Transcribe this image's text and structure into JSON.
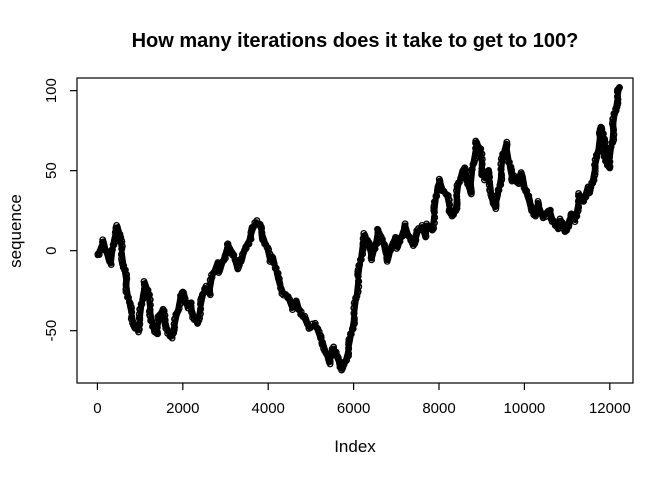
{
  "title": "How many iterations does it take to get to 100?",
  "chart_data": {
    "type": "scatter",
    "title": "How many iterations does it take to get to 100?",
    "xlabel": "Index",
    "ylabel": "sequence",
    "x_ticks": [
      0,
      2000,
      4000,
      6000,
      8000,
      10000,
      12000
    ],
    "y_ticks": [
      -50,
      0,
      50,
      100
    ],
    "xlim": [
      -478,
      12543
    ],
    "ylim": [
      -82.7,
      107.9
    ],
    "grid": false,
    "legend": "none",
    "point_style": "open-circle",
    "point_color": "#000000",
    "background": "#ffffff",
    "series_name": "sequence",
    "final_value": 102,
    "final_index": 12240,
    "keypoints": [
      [
        0,
        -3
      ],
      [
        80,
        2
      ],
      [
        150,
        6
      ],
      [
        200,
        0
      ],
      [
        260,
        -6
      ],
      [
        320,
        -8
      ],
      [
        380,
        6
      ],
      [
        430,
        12
      ],
      [
        480,
        15
      ],
      [
        520,
        10
      ],
      [
        560,
        2
      ],
      [
        620,
        -10
      ],
      [
        660,
        -17
      ],
      [
        700,
        -25
      ],
      [
        760,
        -35
      ],
      [
        820,
        -42
      ],
      [
        880,
        -48
      ],
      [
        940,
        -50
      ],
      [
        1000,
        -42
      ],
      [
        1060,
        -28
      ],
      [
        1120,
        -20
      ],
      [
        1180,
        -25
      ],
      [
        1240,
        -38
      ],
      [
        1320,
        -50
      ],
      [
        1380,
        -52
      ],
      [
        1450,
        -42
      ],
      [
        1520,
        -37
      ],
      [
        1590,
        -44
      ],
      [
        1660,
        -51
      ],
      [
        1720,
        -54
      ],
      [
        1800,
        -48
      ],
      [
        1870,
        -39
      ],
      [
        1940,
        -29
      ],
      [
        2030,
        -26
      ],
      [
        2100,
        -35
      ],
      [
        2170,
        -33
      ],
      [
        2260,
        -41
      ],
      [
        2340,
        -45
      ],
      [
        2450,
        -31
      ],
      [
        2520,
        -23
      ],
      [
        2620,
        -27
      ],
      [
        2690,
        -16
      ],
      [
        2800,
        -8
      ],
      [
        2870,
        -13
      ],
      [
        2970,
        -4
      ],
      [
        3060,
        4
      ],
      [
        3180,
        -2
      ],
      [
        3270,
        -11
      ],
      [
        3390,
        -6
      ],
      [
        3460,
        2
      ],
      [
        3580,
        8
      ],
      [
        3650,
        14
      ],
      [
        3720,
        18
      ],
      [
        3810,
        15
      ],
      [
        3880,
        9
      ],
      [
        3970,
        2
      ],
      [
        4040,
        -6
      ],
      [
        4120,
        -4
      ],
      [
        4230,
        -18
      ],
      [
        4350,
        -26
      ],
      [
        4460,
        -29
      ],
      [
        4560,
        -36
      ],
      [
        4680,
        -32
      ],
      [
        4750,
        -39
      ],
      [
        4860,
        -43
      ],
      [
        4980,
        -48
      ],
      [
        5100,
        -46
      ],
      [
        5210,
        -54
      ],
      [
        5290,
        -58
      ],
      [
        5360,
        -64
      ],
      [
        5420,
        -70
      ],
      [
        5470,
        -66
      ],
      [
        5540,
        -61
      ],
      [
        5610,
        -67
      ],
      [
        5680,
        -71
      ],
      [
        5750,
        -74
      ],
      [
        5850,
        -65
      ],
      [
        5920,
        -56
      ],
      [
        5990,
        -45
      ],
      [
        6060,
        -30
      ],
      [
        6120,
        -15
      ],
      [
        6200,
        2
      ],
      [
        6270,
        10
      ],
      [
        6340,
        5
      ],
      [
        6430,
        -5
      ],
      [
        6500,
        2
      ],
      [
        6570,
        13
      ],
      [
        6670,
        8
      ],
      [
        6740,
        -1
      ],
      [
        6810,
        -6
      ],
      [
        6900,
        4
      ],
      [
        6970,
        8
      ],
      [
        7040,
        2
      ],
      [
        7140,
        11
      ],
      [
        7210,
        16
      ],
      [
        7280,
        10
      ],
      [
        7370,
        4
      ],
      [
        7440,
        6
      ],
      [
        7510,
        12
      ],
      [
        7600,
        15
      ],
      [
        7670,
        9
      ],
      [
        7740,
        16
      ],
      [
        7840,
        13
      ],
      [
        7900,
        25
      ],
      [
        7960,
        40
      ],
      [
        8020,
        44
      ],
      [
        8090,
        38
      ],
      [
        8190,
        34
      ],
      [
        8260,
        25
      ],
      [
        8330,
        22
      ],
      [
        8390,
        27
      ],
      [
        8450,
        40
      ],
      [
        8540,
        50
      ],
      [
        8610,
        51
      ],
      [
        8680,
        42
      ],
      [
        8730,
        36
      ],
      [
        8800,
        55
      ],
      [
        8890,
        68
      ],
      [
        8960,
        63
      ],
      [
        9030,
        48
      ],
      [
        9080,
        45
      ],
      [
        9130,
        50
      ],
      [
        9200,
        42
      ],
      [
        9250,
        30
      ],
      [
        9310,
        27
      ],
      [
        9380,
        34
      ],
      [
        9440,
        45
      ],
      [
        9500,
        60
      ],
      [
        9570,
        67
      ],
      [
        9620,
        59
      ],
      [
        9670,
        50
      ],
      [
        9720,
        44
      ],
      [
        9790,
        46
      ],
      [
        9850,
        42
      ],
      [
        9900,
        48
      ],
      [
        9970,
        46
      ],
      [
        10020,
        38
      ],
      [
        10090,
        32
      ],
      [
        10180,
        27
      ],
      [
        10250,
        22
      ],
      [
        10310,
        30
      ],
      [
        10370,
        26
      ],
      [
        10440,
        21
      ],
      [
        10530,
        24
      ],
      [
        10600,
        25
      ],
      [
        10670,
        19
      ],
      [
        10770,
        14
      ],
      [
        10840,
        19
      ],
      [
        10910,
        17
      ],
      [
        10960,
        12
      ],
      [
        11020,
        17
      ],
      [
        11120,
        23
      ],
      [
        11190,
        19
      ],
      [
        11240,
        27
      ],
      [
        11300,
        35
      ],
      [
        11380,
        31
      ],
      [
        11470,
        39
      ],
      [
        11540,
        36
      ],
      [
        11590,
        43
      ],
      [
        11660,
        53
      ],
      [
        11710,
        59
      ],
      [
        11770,
        73
      ],
      [
        11820,
        77
      ],
      [
        11850,
        69
      ],
      [
        11890,
        61
      ],
      [
        11940,
        54
      ],
      [
        11970,
        52
      ],
      [
        12010,
        59
      ],
      [
        12060,
        70
      ],
      [
        12090,
        80
      ],
      [
        12130,
        88
      ],
      [
        12170,
        94
      ],
      [
        12210,
        100
      ],
      [
        12240,
        102
      ]
    ]
  }
}
